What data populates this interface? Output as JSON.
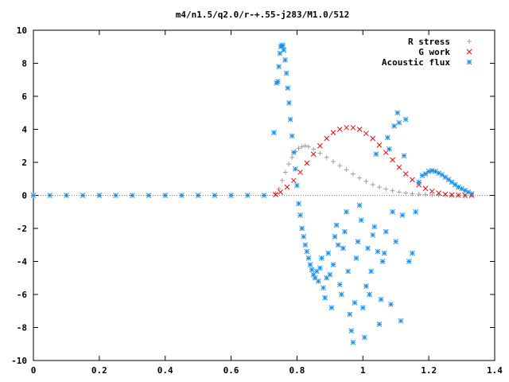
{
  "chart_data": {
    "type": "scatter",
    "title": "m4/n1.5/q2.0/r-+.55-j283/M1.0/512",
    "xlabel": "",
    "ylabel": "",
    "xlim": [
      0,
      1.4
    ],
    "ylim": [
      -10,
      10
    ],
    "grid": false,
    "legend_position": "top-right",
    "x_ticks": [
      "0",
      "0.2",
      "0.4",
      "0.6",
      "0.8",
      "1",
      "1.2",
      "1.4"
    ],
    "y_ticks": [
      "10",
      "8",
      "6",
      "4",
      "2",
      "0",
      "-2",
      "-4",
      "-6",
      "-8",
      "-10"
    ],
    "series": [
      {
        "name": "R stress",
        "marker": "plus",
        "color": "#a0a0a0",
        "x": [
          0.0,
          0.1,
          0.2,
          0.3,
          0.4,
          0.5,
          0.6,
          0.7,
          0.735,
          0.745,
          0.755,
          0.765,
          0.775,
          0.785,
          0.795,
          0.805,
          0.815,
          0.825,
          0.835,
          0.85,
          0.87,
          0.89,
          0.91,
          0.93,
          0.95,
          0.97,
          0.99,
          1.01,
          1.03,
          1.05,
          1.07,
          1.09,
          1.11,
          1.13,
          1.15,
          1.17,
          1.19,
          1.21,
          1.23,
          1.25,
          1.27,
          1.29,
          1.31,
          1.33
        ],
        "y": [
          0,
          0,
          0,
          0,
          0,
          0,
          0,
          0,
          0.1,
          0.4,
          0.9,
          1.4,
          1.9,
          2.3,
          2.65,
          2.85,
          2.95,
          3.0,
          2.95,
          2.8,
          2.55,
          2.3,
          2.05,
          1.8,
          1.55,
          1.3,
          1.05,
          0.85,
          0.65,
          0.5,
          0.38,
          0.28,
          0.2,
          0.14,
          0.1,
          0.07,
          0.05,
          0.03,
          0.02,
          0.01,
          0.0,
          0.0,
          0.0,
          0.0
        ]
      },
      {
        "name": "G work",
        "marker": "cross",
        "color": "#ff0000",
        "x": [
          0.735,
          0.75,
          0.77,
          0.79,
          0.81,
          0.83,
          0.85,
          0.87,
          0.89,
          0.91,
          0.93,
          0.95,
          0.97,
          0.99,
          1.01,
          1.03,
          1.05,
          1.07,
          1.09,
          1.11,
          1.13,
          1.15,
          1.17,
          1.19,
          1.21,
          1.23,
          1.25,
          1.27,
          1.29,
          1.31,
          1.33
        ],
        "y": [
          0.05,
          0.2,
          0.5,
          0.9,
          1.4,
          1.95,
          2.5,
          3.0,
          3.45,
          3.8,
          4.0,
          4.1,
          4.1,
          4.0,
          3.75,
          3.45,
          3.05,
          2.6,
          2.15,
          1.7,
          1.3,
          0.95,
          0.65,
          0.42,
          0.25,
          0.14,
          0.07,
          0.03,
          0.01,
          0.0,
          0.0
        ]
      },
      {
        "name": "Acoustic flux",
        "marker": "star",
        "color": "#1e90e8",
        "x": [
          0.0,
          0.05,
          0.1,
          0.15,
          0.2,
          0.25,
          0.3,
          0.35,
          0.4,
          0.45,
          0.5,
          0.55,
          0.6,
          0.65,
          0.7,
          0.73,
          0.738,
          0.742,
          0.745,
          0.748,
          0.751,
          0.754,
          0.757,
          0.76,
          0.764,
          0.768,
          0.772,
          0.776,
          0.78,
          0.785,
          0.79,
          0.795,
          0.8,
          0.805,
          0.81,
          0.815,
          0.82,
          0.825,
          0.83,
          0.835,
          0.84,
          0.845,
          0.85,
          0.855,
          0.86,
          0.865,
          0.87,
          0.875,
          0.88,
          0.885,
          0.89,
          0.895,
          0.9,
          0.905,
          0.91,
          0.915,
          0.92,
          0.925,
          0.93,
          0.935,
          0.94,
          0.945,
          0.95,
          0.955,
          0.96,
          0.965,
          0.97,
          0.975,
          0.98,
          0.985,
          0.99,
          0.995,
          1.0,
          1.005,
          1.01,
          1.015,
          1.02,
          1.025,
          1.03,
          1.035,
          1.04,
          1.045,
          1.05,
          1.055,
          1.06,
          1.065,
          1.07,
          1.075,
          1.08,
          1.085,
          1.09,
          1.095,
          1.1,
          1.105,
          1.11,
          1.115,
          1.12,
          1.125,
          1.13,
          1.14,
          1.15,
          1.16,
          1.17,
          1.18,
          1.19,
          1.2,
          1.21,
          1.22,
          1.23,
          1.24,
          1.25,
          1.26,
          1.27,
          1.28,
          1.29,
          1.3,
          1.31,
          1.32,
          1.33
        ],
        "y": [
          0,
          0,
          0,
          0,
          0,
          0,
          0,
          0,
          0,
          0,
          0,
          0,
          0,
          0,
          0,
          3.8,
          6.8,
          6.9,
          7.8,
          8.6,
          9.0,
          9.1,
          9.05,
          8.8,
          8.2,
          7.4,
          6.5,
          5.6,
          4.6,
          3.6,
          2.6,
          1.6,
          0.6,
          -0.5,
          -1.2,
          -2.0,
          -2.5,
          -3.0,
          -3.4,
          -3.8,
          -4.2,
          -4.5,
          -4.8,
          -5.0,
          -4.6,
          -5.2,
          -4.4,
          -3.8,
          -5.6,
          -6.2,
          -5.0,
          -3.5,
          -4.8,
          -6.8,
          -4.2,
          -2.5,
          -1.8,
          -3.0,
          -5.4,
          -6.0,
          -3.2,
          -2.2,
          -1.0,
          -4.6,
          -7.2,
          -8.2,
          -8.9,
          -6.5,
          -3.8,
          -2.8,
          -0.6,
          -1.5,
          -6.8,
          -8.6,
          -5.5,
          -3.2,
          -6.0,
          -4.6,
          -2.4,
          -1.9,
          2.5,
          -3.4,
          -7.8,
          -6.3,
          -4.0,
          -3.5,
          -2.2,
          3.5,
          2.8,
          -6.6,
          -1.0,
          4.2,
          -2.8,
          5.0,
          4.4,
          -7.6,
          -1.2,
          2.4,
          4.6,
          -4.0,
          -3.5,
          -1.0,
          0.8,
          1.2,
          1.3,
          1.45,
          1.5,
          1.45,
          1.35,
          1.25,
          1.1,
          0.95,
          0.8,
          0.65,
          0.5,
          0.4,
          0.3,
          0.2,
          0.1
        ]
      }
    ]
  }
}
